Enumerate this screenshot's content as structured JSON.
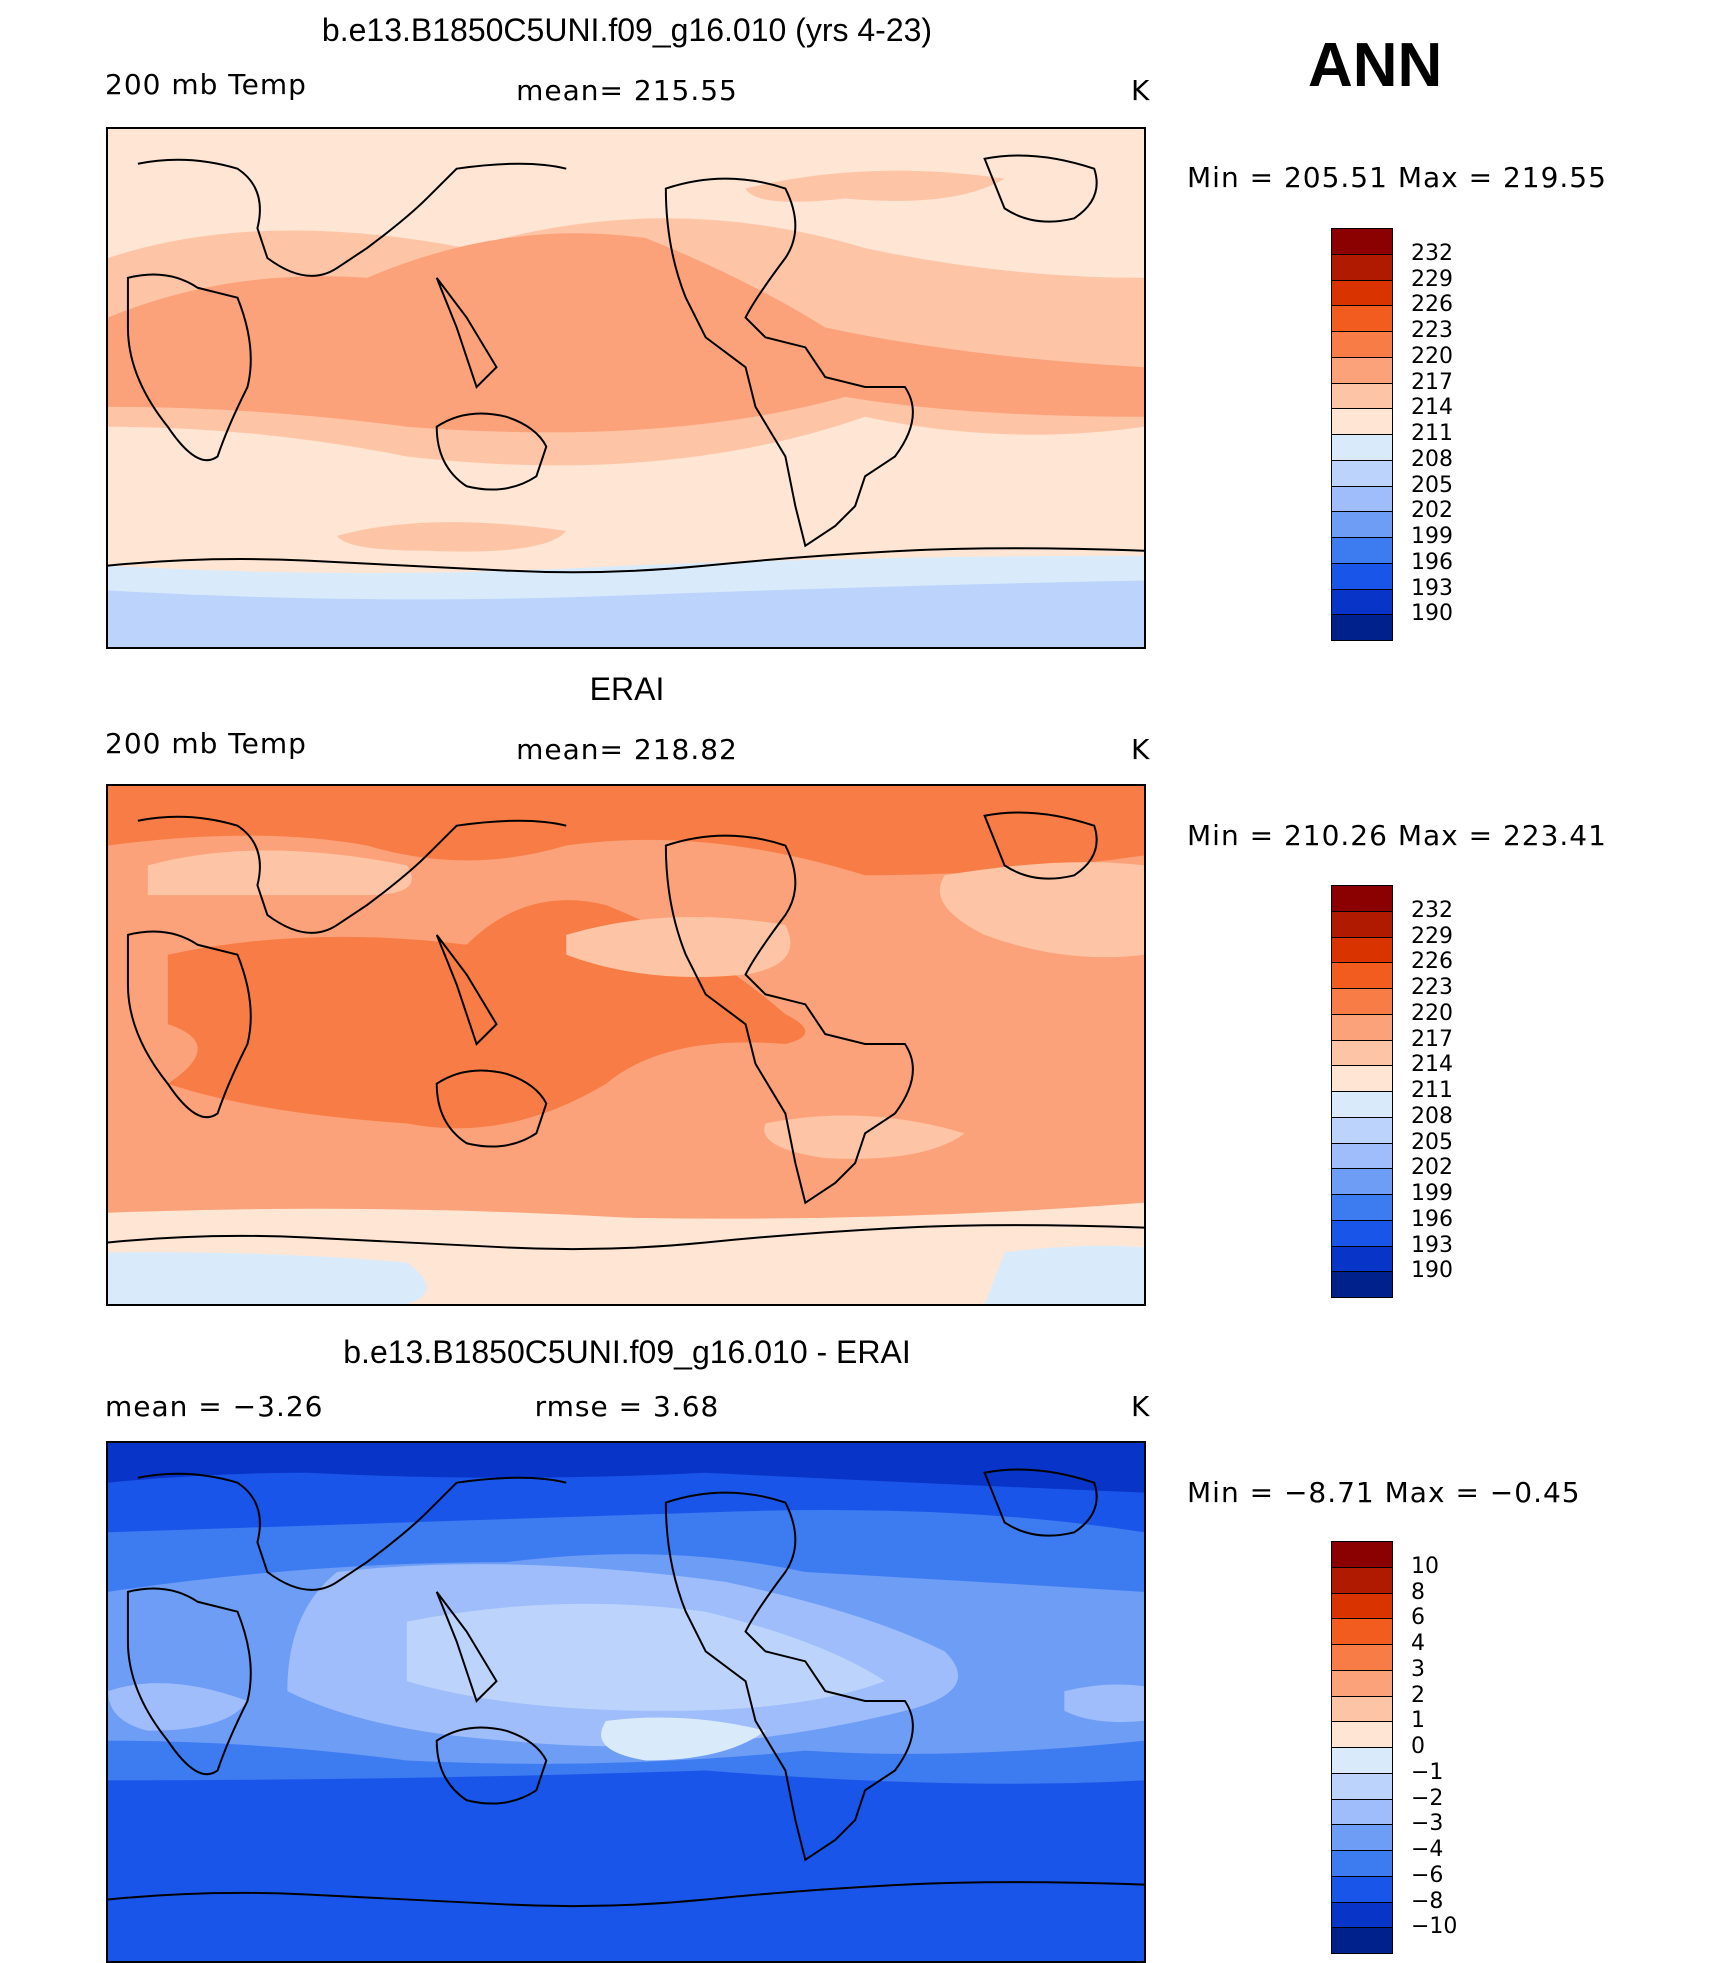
{
  "season": "ANN",
  "panels": [
    {
      "title": "b.e13.B1850C5UNI.f09_g16.010 (yrs 4-23)",
      "left_label": "200 mb Temp",
      "center_label": "mean=  215.55",
      "units": "K",
      "range_text": "Min  =  205.51  Max  =  219.55",
      "colorbar_ticks": [
        "232",
        "229",
        "226",
        "223",
        "220",
        "217",
        "214",
        "211",
        "208",
        "205",
        "202",
        "199",
        "196",
        "193",
        "190"
      ],
      "colors": [
        "#8b0000",
        "#b01a00",
        "#d93400",
        "#f25c1e",
        "#f87c46",
        "#fba27a",
        "#fdc5a6",
        "#fee5d4",
        "#d9ebfb",
        "#bcd4fb",
        "#9ebdfa",
        "#6d9df5",
        "#3d7bf0",
        "#1a55ea",
        "#0834c8",
        "#00208c"
      ],
      "map_field": "model"
    },
    {
      "title": "ERAI",
      "left_label": "200 mb Temp",
      "center_label": "mean=  218.82",
      "units": "K",
      "range_text": "Min  =  210.26  Max  =  223.41",
      "colorbar_ticks": [
        "232",
        "229",
        "226",
        "223",
        "220",
        "217",
        "214",
        "211",
        "208",
        "205",
        "202",
        "199",
        "196",
        "193",
        "190"
      ],
      "colors": [
        "#8b0000",
        "#b01a00",
        "#d93400",
        "#f25c1e",
        "#f87c46",
        "#fba27a",
        "#fdc5a6",
        "#fee5d4",
        "#d9ebfb",
        "#bcd4fb",
        "#9ebdfa",
        "#6d9df5",
        "#3d7bf0",
        "#1a55ea",
        "#0834c8",
        "#00208c"
      ],
      "map_field": "obs"
    },
    {
      "title": "b.e13.B1850C5UNI.f09_g16.010 - ERAI",
      "left_label": "mean  =    −3.26",
      "center_label": "rmse  =     3.68",
      "units": "K",
      "range_text": "Min  =    −8.71  Max  =    −0.45",
      "colorbar_ticks": [
        "10",
        "8",
        "6",
        "4",
        "3",
        "2",
        "1",
        "0",
        "−1",
        "−2",
        "−3",
        "−4",
        "−6",
        "−8",
        "−10"
      ],
      "colors": [
        "#8b0000",
        "#b01a00",
        "#d93400",
        "#f25c1e",
        "#f87c46",
        "#fba27a",
        "#fdc5a6",
        "#fee5d4",
        "#d9ebfb",
        "#bcd4fb",
        "#9ebdfa",
        "#6d9df5",
        "#3d7bf0",
        "#1a55ea",
        "#0834c8",
        "#00208c"
      ],
      "map_field": "diff"
    }
  ]
}
